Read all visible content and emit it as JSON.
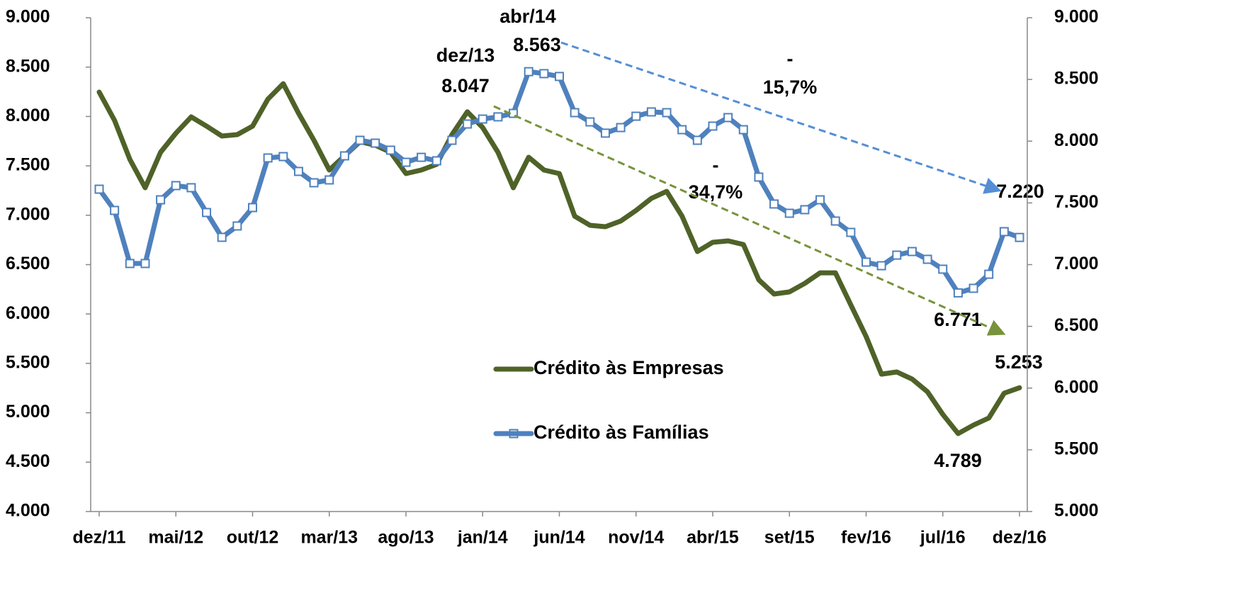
{
  "chart_data": {
    "type": "line",
    "categories": [
      "dez/11",
      null,
      null,
      null,
      null,
      "mai/12",
      null,
      null,
      null,
      null,
      "out/12",
      null,
      null,
      null,
      null,
      "mar/13",
      null,
      null,
      null,
      null,
      "ago/13",
      null,
      null,
      null,
      null,
      "jan/14",
      null,
      null,
      null,
      null,
      "jun/14",
      null,
      null,
      null,
      null,
      "nov/14",
      null,
      null,
      null,
      null,
      "abr/15",
      null,
      null,
      null,
      null,
      "set/15",
      null,
      null,
      null,
      null,
      "fev/16",
      null,
      null,
      null,
      null,
      "jul/16",
      null,
      null,
      null,
      null,
      "dez/16"
    ],
    "series": [
      {
        "name": "Crédito às Empresas",
        "color": "#4f6228",
        "label_color": "#77933c",
        "axis": "y",
        "values": [
          8247,
          7960,
          7565,
          7278,
          7637,
          7831,
          7996,
          7902,
          7802,
          7816,
          7902,
          8175,
          8332,
          8032,
          7759,
          7458,
          7601,
          7745,
          7709,
          7637,
          7422,
          7458,
          7515,
          7816,
          8047,
          7888,
          7637,
          7278,
          7587,
          7458,
          7422,
          6991,
          6898,
          6884,
          6941,
          7049,
          7171,
          7242,
          6991,
          6633,
          6726,
          6740,
          6704,
          6346,
          6202,
          6224,
          6310,
          6417,
          6417,
          6094,
          5772,
          5391,
          5413,
          5341,
          5212,
          4983,
          4789,
          4875,
          4947,
          5198,
          5253
        ],
        "value_labels": [
          null,
          null,
          null,
          null,
          null,
          null,
          null,
          null,
          null,
          null,
          null,
          null,
          null,
          null,
          null,
          null,
          null,
          null,
          null,
          null,
          null,
          null,
          null,
          null,
          "8.047",
          null,
          null,
          null,
          null,
          null,
          null,
          null,
          null,
          null,
          null,
          null,
          null,
          null,
          null,
          null,
          null,
          null,
          null,
          null,
          null,
          null,
          null,
          null,
          null,
          null,
          null,
          null,
          null,
          null,
          null,
          null,
          "4.789",
          null,
          null,
          null,
          "5.253"
        ]
      },
      {
        "name": "Crédito às Famílias",
        "color": "#4f81bd",
        "label_color": "#558ed5",
        "axis": "y2",
        "marker": "square",
        "values": [
          7611,
          7439,
          7009,
          7009,
          7525,
          7640,
          7623,
          7422,
          7221,
          7313,
          7462,
          7864,
          7875,
          7755,
          7663,
          7686,
          7881,
          8007,
          7984,
          7927,
          7829,
          7869,
          7841,
          8007,
          8139,
          8179,
          8197,
          8225,
          8563,
          8547,
          8524,
          8231,
          8156,
          8065,
          8110,
          8202,
          8237,
          8231,
          8093,
          8007,
          8122,
          8191,
          8093,
          7709,
          7491,
          7416,
          7445,
          7525,
          7353,
          7261,
          7020,
          6991,
          7077,
          7106,
          7043,
          6963,
          6771,
          6808,
          6922,
          7267,
          7220
        ],
        "value_labels": [
          null,
          null,
          null,
          null,
          null,
          null,
          null,
          null,
          null,
          null,
          null,
          null,
          null,
          null,
          null,
          null,
          null,
          null,
          null,
          null,
          null,
          null,
          null,
          null,
          null,
          null,
          null,
          null,
          "8.563",
          null,
          null,
          null,
          null,
          null,
          null,
          null,
          null,
          null,
          null,
          null,
          null,
          null,
          null,
          null,
          null,
          null,
          null,
          null,
          null,
          null,
          null,
          null,
          null,
          null,
          null,
          null,
          "6.771",
          null,
          null,
          null,
          "7.220"
        ]
      }
    ],
    "ylim": [
      4000,
      9000
    ],
    "yticks": [
      {
        "value": 4000,
        "label": "4.000"
      },
      {
        "value": 4500,
        "label": "4.500"
      },
      {
        "value": 5000,
        "label": "5.000"
      },
      {
        "value": 5500,
        "label": "5.500"
      },
      {
        "value": 6000,
        "label": "6.000"
      },
      {
        "value": 6500,
        "label": "6.500"
      },
      {
        "value": 7000,
        "label": "7.000"
      },
      {
        "value": 7500,
        "label": "7.500"
      },
      {
        "value": 8000,
        "label": "8.000"
      },
      {
        "value": 8500,
        "label": "8.500"
      },
      {
        "value": 9000,
        "label": "9.000"
      }
    ],
    "y2lim": [
      5000,
      9000
    ],
    "y2ticks": [
      {
        "value": 5000,
        "label": "5.000"
      },
      {
        "value": 5500,
        "label": "5.500"
      },
      {
        "value": 6000,
        "label": "6.000"
      },
      {
        "value": 6500,
        "label": "6.500"
      },
      {
        "value": 7000,
        "label": "7.000"
      },
      {
        "value": 7500,
        "label": "7.500"
      },
      {
        "value": 8000,
        "label": "8.000"
      },
      {
        "value": 8500,
        "label": "8.500"
      },
      {
        "value": 9000,
        "label": "9.000"
      }
    ],
    "grid": false,
    "legend": "center",
    "annotations": [
      {
        "text": "abr/14",
        "color": "#558ed5"
      },
      {
        "text": "dez/13",
        "color": "#77933c"
      },
      {
        "text": "-",
        "color": "#558ed5"
      },
      {
        "text": "15,7%",
        "color": "#558ed5"
      },
      {
        "text": "-",
        "color": "#77933c"
      },
      {
        "text": "34,7%",
        "color": "#77933c"
      }
    ]
  }
}
